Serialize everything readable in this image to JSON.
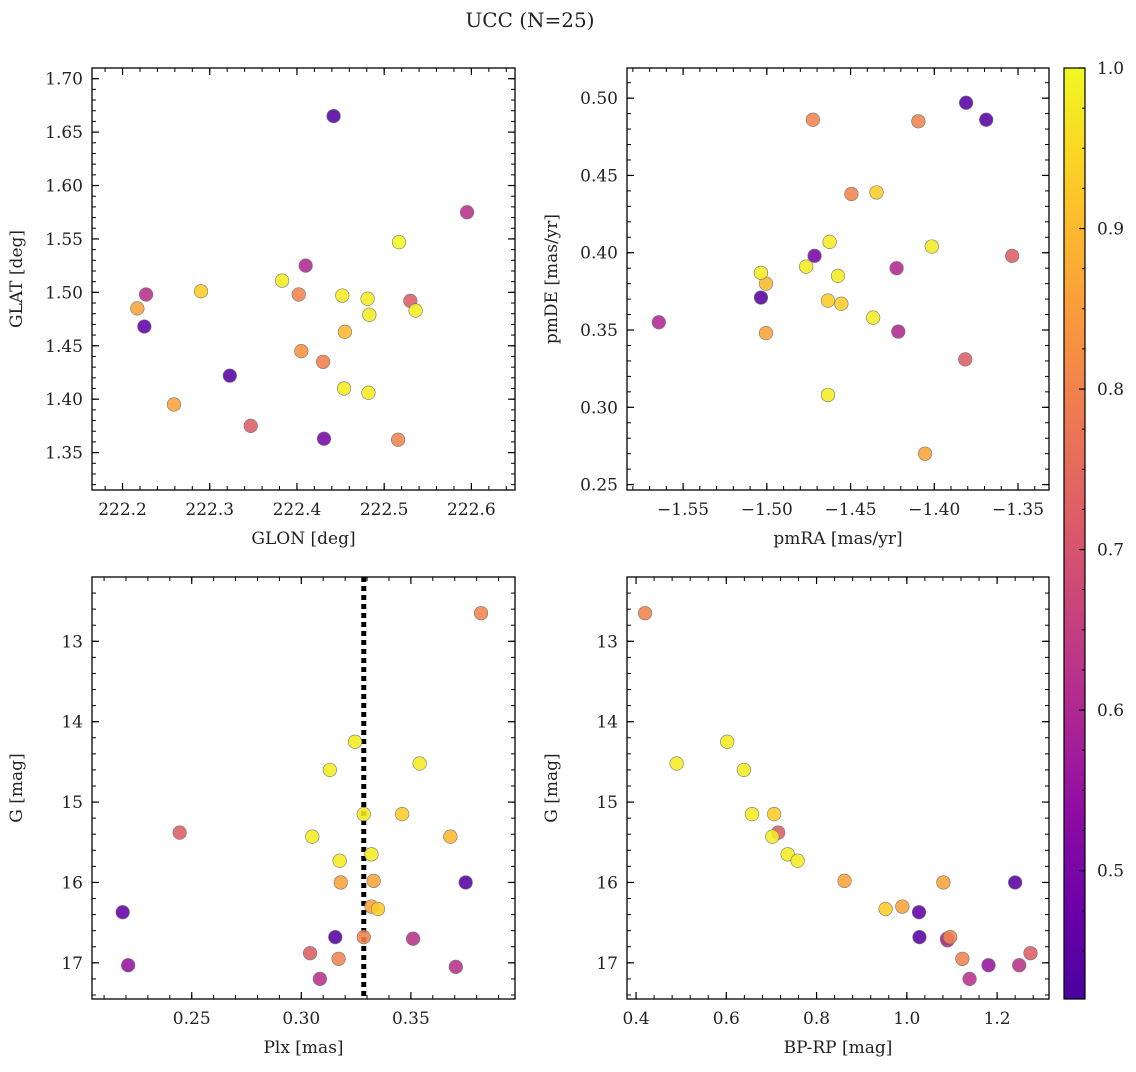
{
  "title": "UCC (N=25)",
  "chart_data": [
    {
      "type": "scatter",
      "id": "sky",
      "xlabel": "GLON [deg]",
      "ylabel": "GLAT [deg]",
      "xlim": [
        222.165,
        222.65
      ],
      "ylim": [
        1.315,
        1.71
      ],
      "xticks": [
        222.2,
        222.3,
        222.4,
        222.5,
        222.6
      ],
      "xticklabels": [
        "222.2",
        "222.3",
        "222.4",
        "222.5",
        "222.6"
      ],
      "yticks": [
        1.35,
        1.4,
        1.45,
        1.5,
        1.55,
        1.6,
        1.65,
        1.7
      ],
      "yticklabels": [
        "1.35",
        "1.40",
        "1.45",
        "1.50",
        "1.55",
        "1.60",
        "1.65",
        "1.70"
      ],
      "y_inverted": false,
      "points": [
        {
          "x": 222.442,
          "y": 1.665,
          "c": 0.44
        },
        {
          "x": 222.595,
          "y": 1.575,
          "c": 0.62
        },
        {
          "x": 222.517,
          "y": 1.547,
          "c": 1.0
        },
        {
          "x": 222.41,
          "y": 1.525,
          "c": 0.6
        },
        {
          "x": 222.383,
          "y": 1.511,
          "c": 0.98
        },
        {
          "x": 222.29,
          "y": 1.501,
          "c": 0.93
        },
        {
          "x": 222.227,
          "y": 1.498,
          "c": 0.62
        },
        {
          "x": 222.402,
          "y": 1.498,
          "c": 0.8
        },
        {
          "x": 222.452,
          "y": 1.497,
          "c": 0.98
        },
        {
          "x": 222.481,
          "y": 1.494,
          "c": 0.98
        },
        {
          "x": 222.53,
          "y": 1.492,
          "c": 0.72
        },
        {
          "x": 222.217,
          "y": 1.485,
          "c": 0.86
        },
        {
          "x": 222.536,
          "y": 1.483,
          "c": 0.98
        },
        {
          "x": 222.483,
          "y": 1.479,
          "c": 0.98
        },
        {
          "x": 222.225,
          "y": 1.468,
          "c": 0.46
        },
        {
          "x": 222.455,
          "y": 1.463,
          "c": 0.9
        },
        {
          "x": 222.405,
          "y": 1.445,
          "c": 0.83
        },
        {
          "x": 222.43,
          "y": 1.435,
          "c": 0.79
        },
        {
          "x": 222.323,
          "y": 1.422,
          "c": 0.44
        },
        {
          "x": 222.454,
          "y": 1.41,
          "c": 0.98
        },
        {
          "x": 222.482,
          "y": 1.406,
          "c": 0.98
        },
        {
          "x": 222.259,
          "y": 1.395,
          "c": 0.86
        },
        {
          "x": 222.347,
          "y": 1.375,
          "c": 0.72
        },
        {
          "x": 222.431,
          "y": 1.363,
          "c": 0.5
        },
        {
          "x": 222.516,
          "y": 1.362,
          "c": 0.8
        }
      ]
    },
    {
      "type": "scatter",
      "id": "pm",
      "xlabel": "pmRA [mas/yr]",
      "ylabel": "pmDE [mas/yr]",
      "xlim": [
        -1.5835,
        -1.3315
      ],
      "ylim": [
        0.2465,
        0.5195
      ],
      "xticks": [
        -1.55,
        -1.5,
        -1.45,
        -1.4,
        -1.35
      ],
      "xticklabels": [
        "−1.55",
        "−1.50",
        "−1.45",
        "−1.40",
        "−1.35"
      ],
      "yticks": [
        0.25,
        0.3,
        0.35,
        0.4,
        0.45,
        0.5
      ],
      "yticklabels": [
        "0.25",
        "0.30",
        "0.35",
        "0.40",
        "0.45",
        "0.50"
      ],
      "y_inverted": false,
      "points": [
        {
          "x": -1.381,
          "y": 0.497,
          "c": 0.44
        },
        {
          "x": -1.4725,
          "y": 0.486,
          "c": 0.8
        },
        {
          "x": -1.4095,
          "y": 0.485,
          "c": 0.8
        },
        {
          "x": -1.369,
          "y": 0.486,
          "c": 0.44
        },
        {
          "x": -1.4495,
          "y": 0.438,
          "c": 0.8
        },
        {
          "x": -1.4345,
          "y": 0.439,
          "c": 0.93
        },
        {
          "x": -1.4625,
          "y": 0.407,
          "c": 0.98
        },
        {
          "x": -1.4015,
          "y": 0.404,
          "c": 0.98
        },
        {
          "x": -1.4715,
          "y": 0.398,
          "c": 0.5
        },
        {
          "x": -1.3535,
          "y": 0.398,
          "c": 0.72
        },
        {
          "x": -1.4765,
          "y": 0.391,
          "c": 0.98
        },
        {
          "x": -1.4225,
          "y": 0.39,
          "c": 0.6
        },
        {
          "x": -1.5035,
          "y": 0.387,
          "c": 0.98
        },
        {
          "x": -1.4575,
          "y": 0.385,
          "c": 0.98
        },
        {
          "x": -1.5005,
          "y": 0.38,
          "c": 0.9
        },
        {
          "x": -1.5035,
          "y": 0.371,
          "c": 0.44
        },
        {
          "x": -1.4635,
          "y": 0.369,
          "c": 0.93
        },
        {
          "x": -1.4555,
          "y": 0.367,
          "c": 0.93
        },
        {
          "x": -1.4365,
          "y": 0.358,
          "c": 0.98
        },
        {
          "x": -1.5645,
          "y": 0.355,
          "c": 0.6
        },
        {
          "x": -1.4215,
          "y": 0.349,
          "c": 0.6
        },
        {
          "x": -1.5005,
          "y": 0.348,
          "c": 0.86
        },
        {
          "x": -1.3815,
          "y": 0.331,
          "c": 0.72
        },
        {
          "x": -1.4635,
          "y": 0.308,
          "c": 0.98
        },
        {
          "x": -1.4055,
          "y": 0.27,
          "c": 0.86
        }
      ]
    },
    {
      "type": "scatter",
      "id": "plx",
      "xlabel": "Plx [mas]",
      "ylabel": "G [mag]",
      "xlim": [
        0.2045,
        0.3975
      ],
      "ylim": [
        12.2,
        17.45
      ],
      "xticks": [
        0.25,
        0.3,
        0.35
      ],
      "xticklabels": [
        "0.25",
        "0.30",
        "0.35"
      ],
      "yticks": [
        13,
        14,
        15,
        16,
        17
      ],
      "yticklabels": [
        "13",
        "14",
        "15",
        "16",
        "17"
      ],
      "y_inverted": true,
      "vline": {
        "x": 0.3285,
        "style": "dotted"
      },
      "points": [
        {
          "x": 0.382,
          "y": 12.65,
          "c": 0.8
        },
        {
          "x": 0.3245,
          "y": 14.25,
          "c": 0.98
        },
        {
          "x": 0.354,
          "y": 14.52,
          "c": 0.98
        },
        {
          "x": 0.313,
          "y": 14.6,
          "c": 0.98
        },
        {
          "x": 0.3285,
          "y": 15.15,
          "c": 0.98
        },
        {
          "x": 0.346,
          "y": 15.15,
          "c": 0.93
        },
        {
          "x": 0.2445,
          "y": 15.38,
          "c": 0.72
        },
        {
          "x": 0.305,
          "y": 15.43,
          "c": 0.98
        },
        {
          "x": 0.368,
          "y": 15.43,
          "c": 0.9
        },
        {
          "x": 0.332,
          "y": 15.65,
          "c": 0.98
        },
        {
          "x": 0.3175,
          "y": 15.73,
          "c": 0.98
        },
        {
          "x": 0.333,
          "y": 15.98,
          "c": 0.86
        },
        {
          "x": 0.318,
          "y": 16.0,
          "c": 0.86
        },
        {
          "x": 0.375,
          "y": 16.0,
          "c": 0.44
        },
        {
          "x": 0.332,
          "y": 16.3,
          "c": 0.86
        },
        {
          "x": 0.335,
          "y": 16.33,
          "c": 0.93
        },
        {
          "x": 0.2185,
          "y": 16.37,
          "c": 0.46
        },
        {
          "x": 0.3155,
          "y": 16.68,
          "c": 0.44
        },
        {
          "x": 0.3285,
          "y": 16.68,
          "c": 0.8
        },
        {
          "x": 0.351,
          "y": 16.7,
          "c": 0.62
        },
        {
          "x": 0.304,
          "y": 16.88,
          "c": 0.72
        },
        {
          "x": 0.317,
          "y": 16.95,
          "c": 0.8
        },
        {
          "x": 0.221,
          "y": 17.03,
          "c": 0.55
        },
        {
          "x": 0.3705,
          "y": 17.05,
          "c": 0.62
        },
        {
          "x": 0.3085,
          "y": 17.2,
          "c": 0.62
        }
      ]
    },
    {
      "type": "scatter",
      "id": "cmd",
      "xlabel": "BP-RP [mag]",
      "ylabel": "G [mag]",
      "xlim": [
        0.38,
        1.315
      ],
      "ylim": [
        12.2,
        17.45
      ],
      "xticks": [
        0.4,
        0.6,
        0.8,
        1.0,
        1.2
      ],
      "xticklabels": [
        "0.4",
        "0.6",
        "0.8",
        "1.0",
        "1.2"
      ],
      "yticks": [
        13,
        14,
        15,
        16,
        17
      ],
      "yticklabels": [
        "13",
        "14",
        "15",
        "16",
        "17"
      ],
      "y_inverted": true,
      "points": [
        {
          "x": 0.42,
          "y": 12.65,
          "c": 0.8
        },
        {
          "x": 0.602,
          "y": 14.25,
          "c": 0.98
        },
        {
          "x": 0.49,
          "y": 14.52,
          "c": 0.98
        },
        {
          "x": 0.639,
          "y": 14.6,
          "c": 0.98
        },
        {
          "x": 0.657,
          "y": 15.15,
          "c": 0.98
        },
        {
          "x": 0.706,
          "y": 15.15,
          "c": 0.93
        },
        {
          "x": 0.715,
          "y": 15.38,
          "c": 0.72
        },
        {
          "x": 0.702,
          "y": 15.43,
          "c": 0.98
        },
        {
          "x": 0.736,
          "y": 15.65,
          "c": 0.98
        },
        {
          "x": 0.758,
          "y": 15.73,
          "c": 0.98
        },
        {
          "x": 0.862,
          "y": 15.98,
          "c": 0.86
        },
        {
          "x": 1.081,
          "y": 16.0,
          "c": 0.86
        },
        {
          "x": 1.24,
          "y": 16.0,
          "c": 0.44
        },
        {
          "x": 0.953,
          "y": 16.33,
          "c": 0.93
        },
        {
          "x": 0.99,
          "y": 16.3,
          "c": 0.86
        },
        {
          "x": 1.027,
          "y": 16.37,
          "c": 0.46
        },
        {
          "x": 1.028,
          "y": 16.68,
          "c": 0.44
        },
        {
          "x": 1.096,
          "y": 16.68,
          "c": 0.8
        },
        {
          "x": 1.089,
          "y": 16.7,
          "c": 0.62
        },
        {
          "x": 1.274,
          "y": 16.88,
          "c": 0.72
        },
        {
          "x": 1.123,
          "y": 16.95,
          "c": 0.8
        },
        {
          "x": 1.181,
          "y": 17.03,
          "c": 0.55
        },
        {
          "x": 1.249,
          "y": 17.03,
          "c": 0.62
        },
        {
          "x": 1.139,
          "y": 17.2,
          "c": 0.62
        },
        {
          "x": 1.09,
          "y": 16.72,
          "c": 0.6
        }
      ]
    }
  ],
  "colorbar": {
    "colormap": "plasma",
    "range": [
      0.42,
      1.0
    ],
    "ticks": [
      0.5,
      0.6,
      0.7,
      0.8,
      0.9,
      1.0
    ],
    "ticklabels": [
      "0.5",
      "0.6",
      "0.7",
      "0.8",
      "0.9",
      "1.0"
    ]
  }
}
